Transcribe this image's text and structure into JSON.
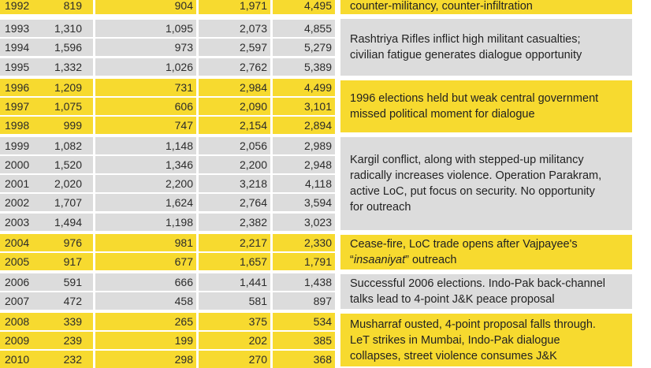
{
  "rows": [
    {
      "year": "1992",
      "v1": "819",
      "v2": "904",
      "v3": "1,971",
      "v4": "4,495",
      "band": "yellow"
    },
    {
      "year": "1993",
      "v1": "1,310",
      "v2": "1,095",
      "v3": "2,073",
      "v4": "4,855",
      "band": "grey"
    },
    {
      "year": "1994",
      "v1": "1,596",
      "v2": "973",
      "v3": "2,597",
      "v4": "5,279",
      "band": "grey"
    },
    {
      "year": "1995",
      "v1": "1,332",
      "v2": "1,026",
      "v3": "2,762",
      "v4": "5,389",
      "band": "grey"
    },
    {
      "year": "1996",
      "v1": "1,209",
      "v2": "731",
      "v3": "2,984",
      "v4": "4,499",
      "band": "yellow"
    },
    {
      "year": "1997",
      "v1": "1,075",
      "v2": "606",
      "v3": "2,090",
      "v4": "3,101",
      "band": "yellow"
    },
    {
      "year": "1998",
      "v1": "999",
      "v2": "747",
      "v3": "2,154",
      "v4": "2,894",
      "band": "yellow"
    },
    {
      "year": "1999",
      "v1": "1,082",
      "v2": "1,148",
      "v3": "2,056",
      "v4": "2,989",
      "band": "grey"
    },
    {
      "year": "2000",
      "v1": "1,520",
      "v2": "1,346",
      "v3": "2,200",
      "v4": "2,948",
      "band": "grey"
    },
    {
      "year": "2001",
      "v1": "2,020",
      "v2": "2,200",
      "v3": "3,218",
      "v4": "4,118",
      "band": "grey"
    },
    {
      "year": "2002",
      "v1": "1,707",
      "v2": "1,624",
      "v3": "2,764",
      "v4": "3,594",
      "band": "grey"
    },
    {
      "year": "2003",
      "v1": "1,494",
      "v2": "1,198",
      "v3": "2,382",
      "v4": "3,023",
      "band": "grey"
    },
    {
      "year": "2004",
      "v1": "976",
      "v2": "981",
      "v3": "2,217",
      "v4": "2,330",
      "band": "yellow"
    },
    {
      "year": "2005",
      "v1": "917",
      "v2": "677",
      "v3": "1,657",
      "v4": "1,791",
      "band": "yellow"
    },
    {
      "year": "2006",
      "v1": "591",
      "v2": "666",
      "v3": "1,441",
      "v4": "1,438",
      "band": "grey"
    },
    {
      "year": "2007",
      "v1": "472",
      "v2": "458",
      "v3": "581",
      "v4": "897",
      "band": "grey"
    },
    {
      "year": "2008",
      "v1": "339",
      "v2": "265",
      "v3": "375",
      "v4": "534",
      "band": "yellow"
    },
    {
      "year": "2009",
      "v1": "239",
      "v2": "199",
      "v3": "202",
      "v4": "385",
      "band": "yellow"
    },
    {
      "year": "2010",
      "v1": "232",
      "v2": "298",
      "v3": "270",
      "v4": "368",
      "band": "yellow"
    }
  ],
  "notes": {
    "n1992": "counter-militancy, counter-infiltration",
    "n1993a": "Rashtriya Rifles inflict high militant casualties;",
    "n1993b": "civilian fatigue generates dialogue opportunity",
    "n1996a": "1996 elections held but weak central government",
    "n1996b": "missed political moment for dialogue",
    "n1999a": "Kargil conflict, along with stepped-up militancy",
    "n1999b": "radically increases violence. Operation Parakram,",
    "n1999c": "active LoC, put focus on security. No opportunity",
    "n1999d": "for outreach",
    "n2004a": "Cease-fire, LoC trade opens after Vajpayee's",
    "n2004b_q1": "“",
    "n2004b_em": "insaaniyat",
    "n2004b_q2": "” outreach",
    "n2006a": "Successful 2006 elections. Indo-Pak back-channel",
    "n2006b": "talks lead to 4-point J&K peace proposal",
    "n2008a": "Musharraf ousted, 4-point proposal falls through.",
    "n2008b": "LeT strikes in Mumbai, Indo-Pak dialogue",
    "n2008c": "collapses, street violence consumes J&K"
  }
}
